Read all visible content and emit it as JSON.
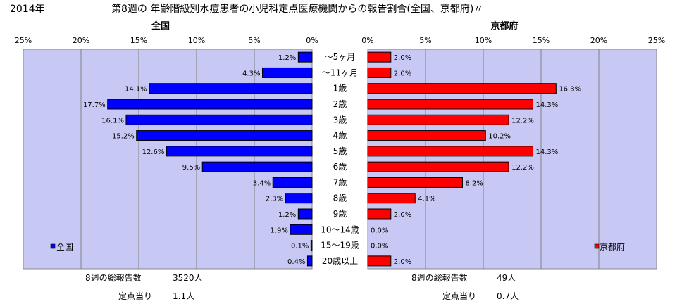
{
  "header": {
    "year": "2014年",
    "title": "第8週の 年齢階級別水痘患者の小児科定点医療機関からの報告割合(全国、京都府)〃"
  },
  "colors": {
    "plot_bg": "#c8c8f4",
    "national": "#0000ff",
    "kyoto": "#ff0000",
    "grid": "#808080"
  },
  "chart_data": [
    {
      "type": "bar",
      "orientation": "horizontal",
      "direction": "leftward",
      "title": "全国",
      "legend": "全国",
      "legend_position": "bottom-left",
      "xlim": [
        0,
        25
      ],
      "ticks": [
        25,
        20,
        15,
        10,
        5,
        0
      ],
      "tick_labels": [
        "25%",
        "20%",
        "15%",
        "10%",
        "5%",
        "0%"
      ],
      "grid": true,
      "categories": [
        "～5ヶ月",
        "～11ヶ月",
        "1歳",
        "2歳",
        "3歳",
        "4歳",
        "5歳",
        "6歳",
        "7歳",
        "8歳",
        "9歳",
        "10～14歳",
        "15～19歳",
        "20歳以上"
      ],
      "values": [
        1.2,
        4.3,
        14.1,
        17.7,
        16.1,
        15.2,
        12.6,
        9.5,
        3.4,
        2.3,
        1.2,
        1.9,
        0.1,
        0.4
      ],
      "value_labels": [
        "1.2%",
        "4.3%",
        "14.1%",
        "17.7%",
        "16.1%",
        "15.2%",
        "12.6%",
        "9.5%",
        "3.4%",
        "2.3%",
        "1.2%",
        "1.9%",
        "0.1%",
        "0.4%"
      ]
    },
    {
      "type": "bar",
      "orientation": "horizontal",
      "direction": "rightward",
      "title": "京都府",
      "legend": "京都府",
      "legend_position": "bottom-right",
      "xlim": [
        0,
        25
      ],
      "ticks": [
        0,
        5,
        10,
        15,
        20,
        25
      ],
      "tick_labels": [
        "0%",
        "5%",
        "10%",
        "15%",
        "20%",
        "25%"
      ],
      "grid": true,
      "categories": [
        "～5ヶ月",
        "～11ヶ月",
        "1歳",
        "2歳",
        "3歳",
        "4歳",
        "5歳",
        "6歳",
        "7歳",
        "8歳",
        "9歳",
        "10～14歳",
        "15～19歳",
        "20歳以上"
      ],
      "values": [
        2.0,
        2.0,
        16.3,
        14.3,
        12.2,
        10.2,
        14.3,
        12.2,
        8.2,
        4.1,
        2.0,
        0.0,
        0.0,
        2.0
      ],
      "value_labels": [
        "2.0%",
        "2.0%",
        "16.3%",
        "14.3%",
        "12.2%",
        "10.2%",
        "14.3%",
        "12.2%",
        "8.2%",
        "4.1%",
        "2.0%",
        "0.0%",
        "0.0%",
        "2.0%"
      ]
    }
  ],
  "footer": {
    "national": {
      "total_label": "8週の総報告数",
      "total_value": "3520人",
      "per_label": "定点当り",
      "per_value": "1.1人"
    },
    "kyoto": {
      "total_label": "8週の総報告数",
      "total_value": "49人",
      "per_label": "定点当り",
      "per_value": "0.7人"
    }
  }
}
